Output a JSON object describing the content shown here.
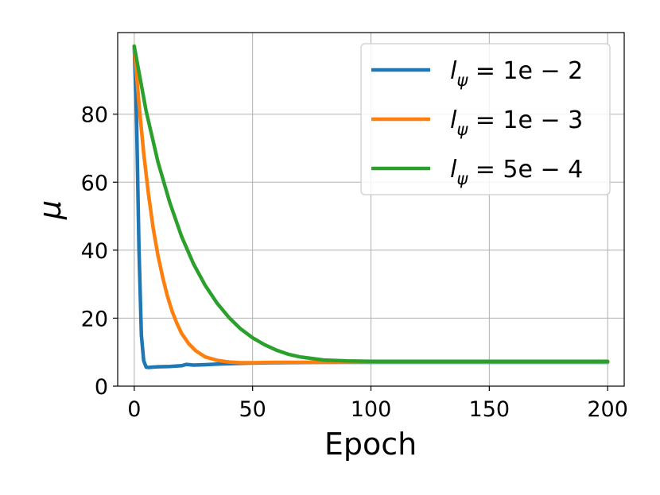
{
  "chart_data": {
    "type": "line",
    "xlabel": "Epoch",
    "ylabel": "μ",
    "xlim": [
      -7,
      207
    ],
    "ylim": [
      0,
      104
    ],
    "x_ticks": [
      "0",
      "50",
      "100",
      "150",
      "200"
    ],
    "y_ticks": [
      "0",
      "20",
      "40",
      "60",
      "80"
    ],
    "grid": true,
    "legend_position": "top-right",
    "series": [
      {
        "name": "l_ψ = 1e − 2",
        "legend": {
          "base": "l",
          "sub": "ψ",
          "rest": " = 1e − 2"
        },
        "color": "#1f77b4",
        "x": [
          0,
          1,
          2,
          3,
          4,
          5,
          6,
          8,
          10,
          15,
          20,
          22,
          25,
          30,
          35,
          40,
          50,
          60,
          80,
          100,
          120,
          140,
          160,
          180,
          200
        ],
        "y": [
          100,
          78,
          40,
          15,
          7.5,
          5.6,
          5.5,
          5.6,
          5.7,
          5.8,
          6.0,
          6.4,
          6.2,
          6.3,
          6.5,
          6.6,
          6.8,
          6.9,
          7.0,
          7.0,
          7.0,
          7.0,
          7.0,
          7.0,
          7.0
        ]
      },
      {
        "name": "l_ψ = 1e − 3",
        "legend": {
          "base": "l",
          "sub": "ψ",
          "rest": " = 1e − 3"
        },
        "color": "#ff7f0e",
        "x": [
          0,
          2,
          4,
          6,
          8,
          10,
          12,
          14,
          16,
          18,
          20,
          23,
          26,
          30,
          35,
          40,
          45,
          50,
          60,
          80,
          100,
          150,
          200
        ],
        "y": [
          100,
          83,
          68.5,
          56.5,
          46.5,
          38.5,
          32,
          26.5,
          22,
          18.5,
          15.5,
          12.5,
          10.4,
          8.6,
          7.6,
          7.1,
          6.9,
          6.9,
          7.0,
          7.0,
          7.1,
          7.1,
          7.1
        ]
      },
      {
        "name": "l_ψ = 5e − 4",
        "legend": {
          "base": "l",
          "sub": "ψ",
          "rest": " = 5e − 4"
        },
        "color": "#2ca02c",
        "x": [
          0,
          5,
          10,
          15,
          20,
          25,
          30,
          35,
          40,
          45,
          50,
          55,
          60,
          65,
          70,
          80,
          90,
          100,
          150,
          200
        ],
        "y": [
          100,
          81,
          66,
          54,
          44,
          36,
          29.6,
          24.4,
          20.2,
          16.8,
          14.2,
          12.2,
          10.6,
          9.4,
          8.6,
          7.7,
          7.4,
          7.3,
          7.3,
          7.3
        ]
      }
    ]
  }
}
